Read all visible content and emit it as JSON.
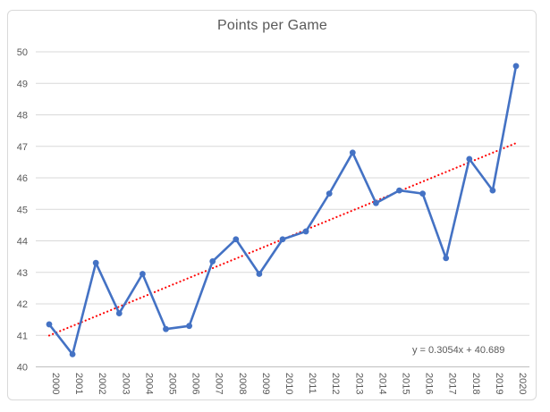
{
  "chart_data": {
    "type": "line",
    "title": "Points per Game",
    "categories": [
      "2000",
      "2001",
      "2002",
      "2003",
      "2004",
      "2005",
      "2006",
      "2007",
      "2008",
      "2009",
      "2010",
      "2011",
      "2012",
      "2013",
      "2014",
      "2015",
      "2016",
      "2017",
      "2018",
      "2019",
      "2020"
    ],
    "series": [
      {
        "name": "Points per Game",
        "values": [
          41.35,
          40.4,
          43.3,
          41.7,
          42.95,
          41.2,
          41.3,
          43.35,
          44.05,
          42.95,
          44.05,
          44.3,
          45.5,
          46.8,
          45.2,
          45.6,
          45.5,
          43.45,
          46.6,
          45.6,
          49.55
        ],
        "color": "#4472C4",
        "marker": "circle"
      }
    ],
    "xlabel": "",
    "ylabel": "",
    "ylim": [
      40,
      50
    ],
    "y_tick_step": 1,
    "grid": true,
    "legend_position": "none",
    "trendline": {
      "type": "linear",
      "slope": 0.3054,
      "intercept": 40.689,
      "label": "y = 0.3054x + 40.689",
      "color": "#FF0000",
      "style": "dotted"
    }
  },
  "styles": {
    "text_color": "#595959",
    "gridline_color": "#D9D9D9",
    "axis_line_color": "#BFBFBF",
    "frame_border_color": "#D9D9D9",
    "background": "#FFFFFF"
  }
}
